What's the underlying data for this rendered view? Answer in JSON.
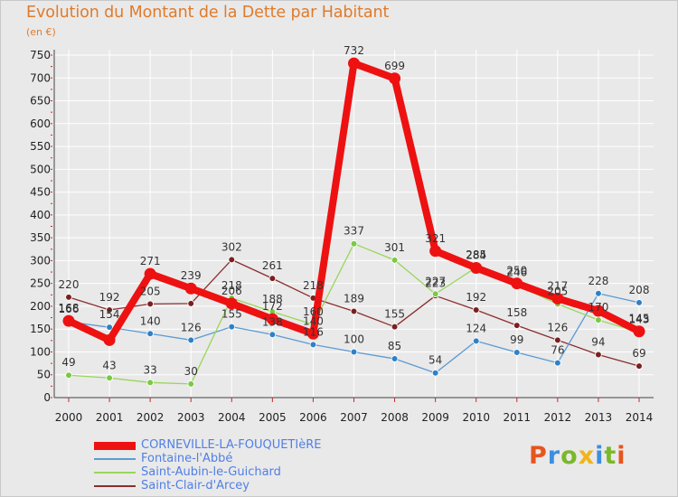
{
  "title": "Evolution du Montant de la Dette par Habitant",
  "subtitle": "(en €)",
  "brand": {
    "text": "Proxiti",
    "colors": [
      "#e8541e",
      "#3d8ee0",
      "#7ab829",
      "#f0b41a",
      "#3d8ee0",
      "#7ab829",
      "#e8541e"
    ]
  },
  "colors": {
    "background": "#e9e9e9",
    "grid": "#ffffff",
    "accent_title": "#e07b2a",
    "legend_text": "#4f7fe6"
  },
  "chart_data": {
    "type": "line",
    "title": "Evolution du Montant de la Dette par Habitant",
    "subtitle": "(en €)",
    "x": [
      "2000",
      "2001",
      "2002",
      "2003",
      "2004",
      "2005",
      "2006",
      "2007",
      "2008",
      "2009",
      "2010",
      "2011",
      "2012",
      "2013",
      "2014"
    ],
    "ylim": [
      0,
      750
    ],
    "yticks": [
      0,
      50,
      100,
      150,
      200,
      250,
      300,
      350,
      400,
      450,
      500,
      550,
      600,
      650,
      700,
      750
    ],
    "grid": true,
    "legend_position": "bottom-left",
    "series": [
      {
        "name": "CORNEVILLE-LA-FOUQUETIèRE",
        "color": "#ee1111",
        "marker": "#ee1111",
        "values": [
          168,
          126,
          271,
          239,
          206,
          172,
          140,
          732,
          699,
          321,
          284,
          250,
          217,
          190,
          145
        ],
        "labels": [
          "168",
          "",
          "271",
          "239",
          "206",
          "172",
          "140",
          "732",
          "699",
          "321",
          "284",
          "250",
          "217",
          "",
          "145"
        ]
      },
      {
        "name": "Fontaine-l'Abbé",
        "color": "#5b9bd5",
        "marker": "#2f80c8",
        "values": [
          166,
          154,
          140,
          126,
          155,
          138,
          116,
          100,
          85,
          54,
          124,
          99,
          76,
          228,
          208
        ],
        "labels": [
          "166",
          "154",
          "140",
          "126",
          "155",
          "138",
          "116",
          "100",
          "85",
          "54",
          "124",
          "99",
          "76",
          "228",
          "208"
        ]
      },
      {
        "name": "Saint-Aubin-le-Guichard",
        "color": "#99d65a",
        "marker": "#7ac943",
        "values": [
          49,
          43,
          33,
          30,
          218,
          188,
          160,
          337,
          301,
          227,
          285,
          246,
          205,
          170,
          143
        ],
        "labels": [
          "49",
          "43",
          "33",
          "30",
          "218",
          "188",
          "160",
          "337",
          "301",
          "227",
          "285",
          "246",
          "205",
          "170",
          "143"
        ]
      },
      {
        "name": "Saint-Clair-d'Arcey",
        "color": "#8b2e2e",
        "marker": "#7a2020",
        "values": [
          220,
          192,
          205,
          206,
          302,
          261,
          218,
          189,
          155,
          223,
          192,
          158,
          126,
          94,
          69
        ],
        "labels": [
          "220",
          "192",
          "205",
          "",
          "302",
          "261",
          "218",
          "189",
          "155",
          "223",
          "192",
          "158",
          "126",
          "94",
          "69"
        ]
      }
    ]
  }
}
